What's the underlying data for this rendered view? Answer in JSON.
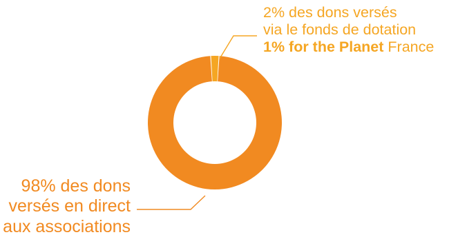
{
  "chart_data": {
    "type": "pie",
    "variant": "donut",
    "slices": [
      {
        "value": 2,
        "color": "#F5A623",
        "label_lines": [
          "2% des dons versés",
          "via le fonds de dotation"
        ],
        "label_bold": "1% for the Planet",
        "label_tail": " France"
      },
      {
        "value": 98,
        "color": "#F18A21",
        "label_lines": [
          "98% des dons",
          "versés en direct",
          "aux associations"
        ]
      }
    ]
  }
}
